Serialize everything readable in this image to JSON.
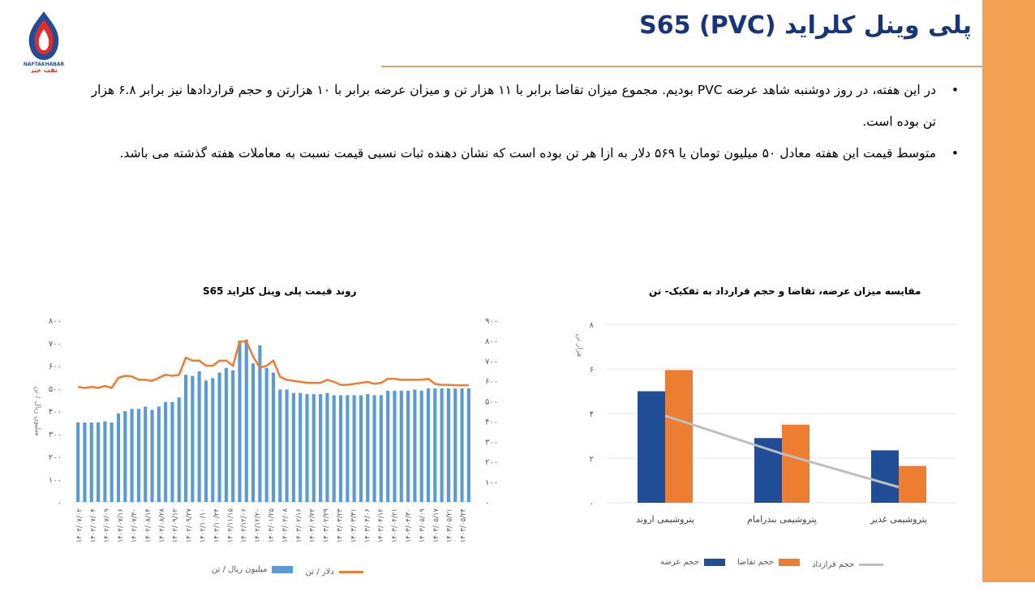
{
  "header": {
    "title": "پلی وینل کلراید (PVC) S65",
    "logo_text": "NAFTAKHABAR",
    "logo_subtext": "نفت خبر"
  },
  "bullets": [
    "در این هفته، در روز دوشنبه شاهد عرضه PVC بودیم. مجموع میزان تقاضا برابر با ۱۱ هزار تن و میزان عرضه برابر با ۱۰ هزارتن و حجم قراردادها نیز برابر ۶.۸ هزار تن بوده است.",
    "متوسط قیمت این هفته معادل ۵۰ میلیون تومان یا ۵۶۹ دلار به ازا هر تن بوده است که نشان دهنده ثبات نسبی قیمت نسبت به معاملات هفته گذشته می باشد."
  ],
  "colors": {
    "accent_bar": "#f5a154",
    "title": "#17357a",
    "blue": "#5b9bd5",
    "orange": "#ed7d31",
    "navy": "#1f4e97",
    "gray": "#bfbfbf"
  },
  "chart_data": [
    {
      "type": "bar",
      "title": "روند قیمت پلی وینل کلراید S65",
      "ylabel": "میلیون ریال / تن",
      "y2label": "دلار / تن",
      "ylim": [
        0,
        800
      ],
      "y2lim": [
        0,
        900
      ],
      "yticks": [
        "۸۰۰",
        "۷۰۰",
        "۶۰۰",
        "۵۰۰",
        "۴۰۰",
        "۳۰۰",
        "۲۰۰",
        "۱۰۰",
        "۰"
      ],
      "y2ticks": [
        "۹۰۰",
        "۸۰۰",
        "۷۰۰",
        "۶۰۰",
        "۵۰۰",
        "۴۰۰",
        "۳۰۰",
        "۲۰۰",
        "۱۰۰",
        "۰"
      ],
      "x_labels": [
        "۱۴۰۲/۰۷/۰۲",
        "۱۴۰۲/۰۷/۰۴",
        "۱۴۰۲/۰۷/۰۹",
        "۱۴۰۲/۰۷/۱۶",
        "۱۴۰۲/۰۷/۳۰",
        "۱۴۰۲/۰۸/۱۴",
        "۱۴۰۲/۰۸/۲۸",
        "۱۴۰۲/۰۹/۱۲",
        "۱۴۰۲/۰۹/۲۷",
        "۱۴۰۲/۱۰/۱۰",
        "۱۴۰۲/۱۰/۲۴",
        "۱۴۰۲/۱۱/۱۵",
        "۱۴۰۲/۱۲/۰۶",
        "۱۴۰۲/۱۲/۲۰",
        "۱۴۰۳/۰۱/۲۵",
        "۱۴۰۳/۰۲/۰۸",
        "۱۴۰۳/۰۲/۱۶",
        "۱۴۰۳/۰۲/۲۲",
        "۱۴۰۳/۰۲/۲۹",
        "۱۴۰۳/۰۳/۲۳",
        "۱۴۰۳/۰۳/۳۱",
        "۱۴۰۳/۰۴/۰۶",
        "۱۴۰۳/۰۴/۱۲",
        "۱۴۰۳/۰۴/۲۱",
        "۱۴۰۳/۰۴/۳۰",
        "۱۴۰۳/۰۵/۰۹",
        "۱۴۰۳/۰۵/۱۷",
        "۱۴۰۳/۰۵/۲۱",
        "۱۴۰۳/۰۵/۲۴"
      ],
      "series": [
        {
          "name": "میلیون ریال / تن",
          "axis": "left",
          "kind": "bar",
          "values": [
            350,
            350,
            350,
            350,
            355,
            350,
            390,
            400,
            410,
            410,
            420,
            405,
            420,
            440,
            440,
            460,
            560,
            555,
            575,
            535,
            545,
            570,
            590,
            580,
            710,
            715,
            610,
            690,
            590,
            570,
            495,
            495,
            480,
            480,
            475,
            475,
            475,
            480,
            470,
            470,
            470,
            470,
            470,
            475,
            470,
            470,
            490,
            490,
            490,
            490,
            495,
            490,
            500,
            500,
            500,
            500,
            500,
            500,
            500
          ]
        },
        {
          "name": "دلار / تن",
          "axis": "right",
          "kind": "line",
          "values": [
            570,
            565,
            570,
            565,
            575,
            565,
            615,
            625,
            622,
            605,
            605,
            600,
            615,
            630,
            625,
            630,
            715,
            700,
            700,
            675,
            675,
            700,
            700,
            675,
            795,
            795,
            720,
            665,
            675,
            700,
            620,
            605,
            600,
            595,
            590,
            590,
            590,
            605,
            595,
            580,
            580,
            585,
            590,
            595,
            585,
            590,
            610,
            610,
            605,
            605,
            605,
            605,
            610,
            585,
            580,
            580,
            578,
            578,
            578
          ]
        }
      ]
    },
    {
      "type": "bar",
      "title": "مقایسه میزان عرضه، تقاضا و حجم قرارداد به تفکیک-  تن",
      "ylabel": "هزار تن",
      "ylim": [
        0,
        8
      ],
      "yticks": [
        "۸",
        "۶",
        "۴",
        "۲",
        "۰"
      ],
      "categories": [
        "پتروشیمی اروند",
        "پتروشیمی بندرامام",
        "پتروشیمی غدیر"
      ],
      "series": [
        {
          "name": "حجم عرضه",
          "kind": "bar",
          "values": [
            5.0,
            2.9,
            2.35
          ]
        },
        {
          "name": "حجم تقاضا",
          "kind": "bar",
          "values": [
            5.95,
            3.5,
            1.65
          ]
        },
        {
          "name": "حجم قرارداد",
          "kind": "line",
          "values": [
            3.9,
            2.2,
            0.7
          ]
        }
      ]
    }
  ]
}
